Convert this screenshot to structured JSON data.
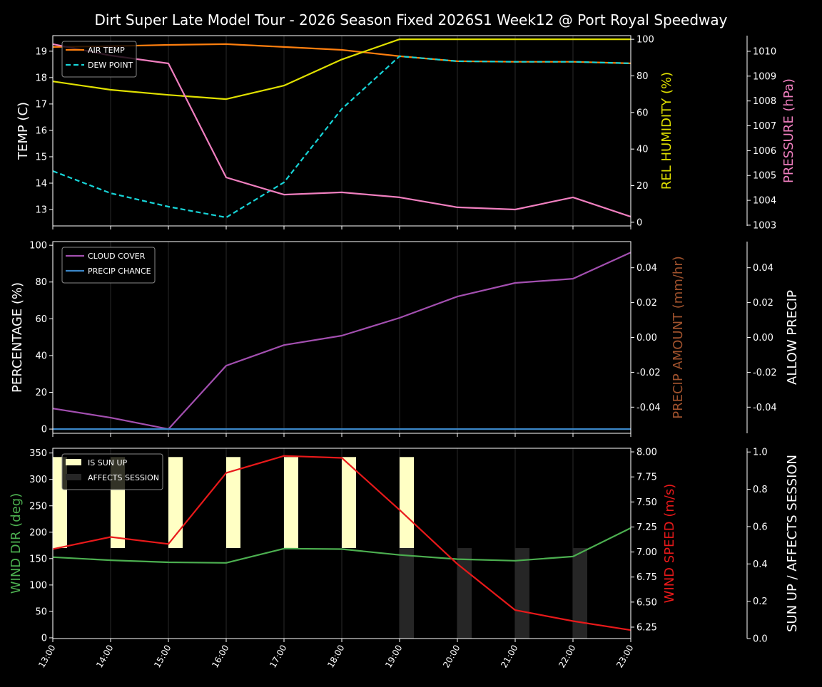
{
  "title": "Dirt Super Late Model Tour - 2026 Season Fixed 2026S1 Week12 @ Port Royal Speedway",
  "chart_data": [
    {
      "type": "line",
      "x": [
        "13:00",
        "14:00",
        "15:00",
        "16:00",
        "17:00",
        "18:00",
        "19:00",
        "20:00",
        "21:00",
        "22:00",
        "23:00"
      ],
      "ylabel": "TEMP (C)",
      "ylim": [
        12.38,
        19.59
      ],
      "yticks": [
        13,
        14,
        15,
        16,
        17,
        18,
        19
      ],
      "y2label": "REL HUMIDITY (%)",
      "y2lim": [
        -2,
        102
      ],
      "y2ticks": [
        0,
        20,
        40,
        60,
        80,
        100
      ],
      "y3label": "PRESSURE (hPa)",
      "y3lim": [
        1002.97,
        1010.63
      ],
      "y3ticks": [
        1003,
        1004,
        1005,
        1006,
        1007,
        1008,
        1009,
        1010
      ],
      "legend": "top-left",
      "series": [
        {
          "name": "AIR TEMP",
          "axis": "y",
          "color": "#ff7f0e",
          "dash": false,
          "values": [
            19.16,
            19.19,
            19.24,
            19.27,
            19.16,
            19.05,
            18.81,
            18.62,
            18.6,
            18.6,
            18.54
          ]
        },
        {
          "name": "DEW POINT",
          "axis": "y",
          "color": "#17d4d8",
          "dash": true,
          "values": [
            14.46,
            13.62,
            13.11,
            12.7,
            14.03,
            16.81,
            18.81,
            18.62,
            18.6,
            18.6,
            18.54
          ]
        },
        {
          "axis": "y2",
          "color": "#e0e000",
          "dash": false,
          "values": [
            77,
            72.4,
            69.6,
            67.3,
            74.7,
            89,
            100,
            100,
            100,
            100,
            100
          ]
        },
        {
          "axis": "y3",
          "color": "#f07fbf",
          "dash": false,
          "values": [
            1010.29,
            1009.83,
            1009.51,
            1004.92,
            1004.23,
            1004.32,
            1004.12,
            1003.72,
            1003.63,
            1004.12,
            1003.34
          ]
        }
      ]
    },
    {
      "type": "line",
      "x": [
        "13:00",
        "14:00",
        "15:00",
        "16:00",
        "17:00",
        "18:00",
        "19:00",
        "20:00",
        "21:00",
        "22:00",
        "23:00"
      ],
      "ylabel": "PERCENTAGE (%)",
      "ylim": [
        -2.3,
        102
      ],
      "yticks": [
        0,
        20,
        40,
        60,
        80,
        100
      ],
      "y2label": "PRECIP AMOUNT (mm/hr)",
      "y2lim": [
        -0.055,
        0.055
      ],
      "y2ticks": [
        "-0.04",
        "-0.02",
        "0.00",
        "0.02",
        "0.04"
      ],
      "y3label": "ALLOW PRECIP",
      "y3lim": [
        -0.055,
        0.055
      ],
      "y3ticks": [
        "-0.04",
        "-0.02",
        "0.00",
        "0.02",
        "0.04"
      ],
      "legend": "top-left",
      "series": [
        {
          "name": "CLOUD COVER",
          "axis": "y",
          "color": "#a34fb0",
          "values": [
            11.2,
            6.2,
            0,
            34.5,
            45.7,
            50.8,
            60.5,
            72.1,
            79.5,
            81.8,
            96.1
          ]
        },
        {
          "name": "PRECIP CHANCE",
          "axis": "y",
          "color": "#3a86c8",
          "values": [
            0,
            0,
            0,
            0,
            0,
            0,
            0,
            0,
            0,
            0,
            0
          ]
        }
      ]
    },
    {
      "type": "line",
      "x": [
        "13:00",
        "14:00",
        "15:00",
        "16:00",
        "17:00",
        "18:00",
        "19:00",
        "20:00",
        "21:00",
        "22:00",
        "23:00"
      ],
      "ylabel": "WIND DIR (deg)",
      "ylim": [
        -1.4,
        359
      ],
      "yticks": [
        0,
        50,
        100,
        150,
        200,
        250,
        300,
        350
      ],
      "y2label": "WIND SPEED (m/s)",
      "y2lim": [
        6.136,
        8.036
      ],
      "y2ticks": [
        "6.25",
        "6.50",
        "6.75",
        "7.00",
        "7.25",
        "7.50",
        "7.75",
        "8.00"
      ],
      "y3label": "SUN UP / AFFECTS SESSION",
      "y3lim": [
        0,
        1.02
      ],
      "y3ticks": [
        "0.0",
        "0.2",
        "0.4",
        "0.6",
        "0.8",
        "1.0"
      ],
      "legend": "top-left",
      "series": [
        {
          "axis": "y",
          "color": "#4caf50",
          "values": [
            152.7,
            147,
            143,
            142,
            169,
            168,
            157,
            149,
            146,
            154,
            208
          ]
        },
        {
          "axis": "y2",
          "color": "#e8191a",
          "values": [
            7.03,
            7.15,
            7.08,
            7.79,
            7.96,
            7.94,
            7.42,
            6.88,
            6.42,
            6.31,
            6.22
          ]
        }
      ],
      "bars": [
        {
          "name": "IS SUN UP",
          "color": "#ffffc4",
          "values": [
            1,
            1,
            1,
            1,
            1,
            1,
            1,
            0,
            0,
            0,
            0
          ]
        },
        {
          "name": "AFFECTS SESSION",
          "color": "#262626",
          "values": [
            0,
            0,
            0,
            0,
            0,
            0,
            1,
            1,
            1,
            1,
            0
          ]
        }
      ]
    }
  ]
}
